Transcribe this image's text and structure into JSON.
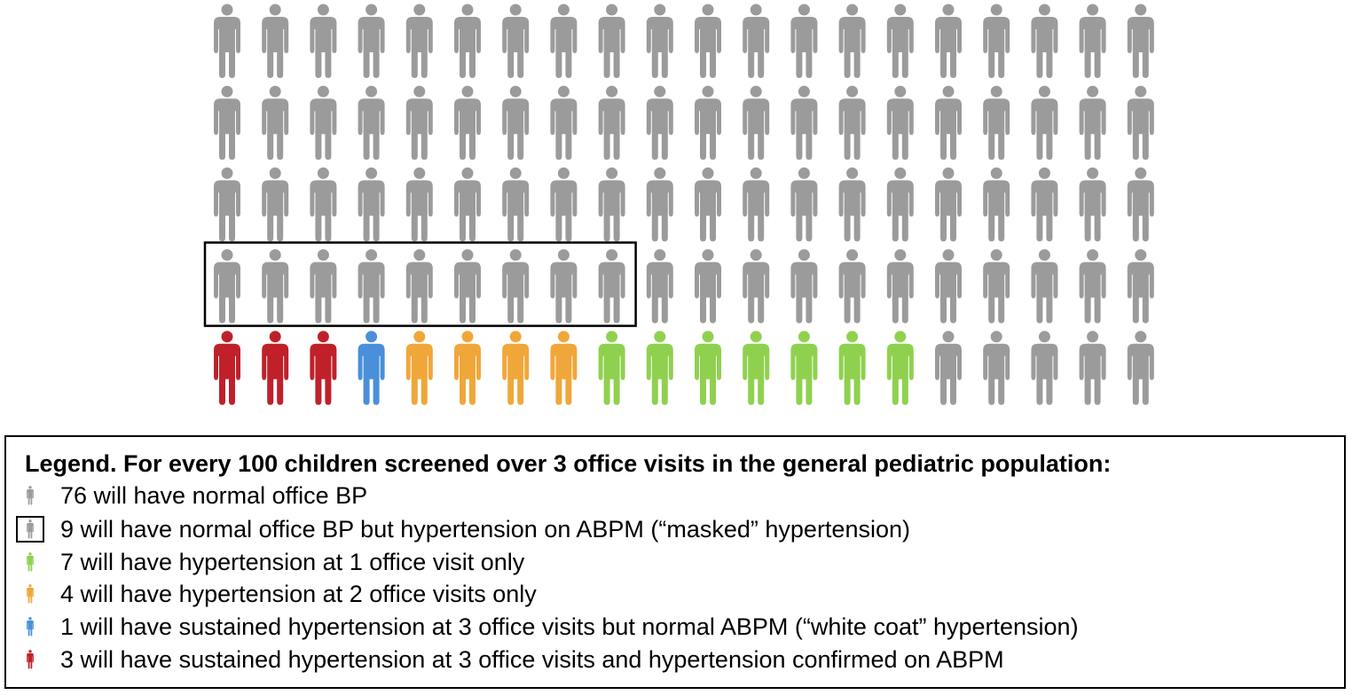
{
  "colors": {
    "normal": "#9b9b9b",
    "masked": "#9b9b9b",
    "one_visit": "#8fd14f",
    "two_visits": "#f0a73a",
    "white_coat": "#4a8fd9",
    "confirmed": "#c0202a"
  },
  "chart_data": {
    "type": "pictograph",
    "total": 100,
    "grid": {
      "rows": 5,
      "columns": 20
    },
    "categories": [
      {
        "key": "normal",
        "count": 76,
        "label": "76 will have normal office BP"
      },
      {
        "key": "masked",
        "count": 9,
        "label": "9 will have normal office BP but hypertension on ABPM (“masked” hypertension)",
        "boxed": true
      },
      {
        "key": "one_visit",
        "count": 7,
        "label": "7 will have hypertension at 1 office visit only"
      },
      {
        "key": "two_visits",
        "count": 4,
        "label": "4 will have hypertension at 2 office visits only"
      },
      {
        "key": "white_coat",
        "count": 1,
        "label": "1 will have sustained hypertension at 3 office visits but normal ABPM (“white coat” hypertension)"
      },
      {
        "key": "confirmed",
        "count": 3,
        "label": "3 will have sustained hypertension at 3 office visits and hypertension confirmed on ABPM"
      }
    ],
    "icon_rows": [
      [
        "normal",
        "normal",
        "normal",
        "normal",
        "normal",
        "normal",
        "normal",
        "normal",
        "normal",
        "normal",
        "normal",
        "normal",
        "normal",
        "normal",
        "normal",
        "normal",
        "normal",
        "normal",
        "normal",
        "normal"
      ],
      [
        "normal",
        "normal",
        "normal",
        "normal",
        "normal",
        "normal",
        "normal",
        "normal",
        "normal",
        "normal",
        "normal",
        "normal",
        "normal",
        "normal",
        "normal",
        "normal",
        "normal",
        "normal",
        "normal",
        "normal"
      ],
      [
        "normal",
        "normal",
        "normal",
        "normal",
        "normal",
        "normal",
        "normal",
        "normal",
        "normal",
        "normal",
        "normal",
        "normal",
        "normal",
        "normal",
        "normal",
        "normal",
        "normal",
        "normal",
        "normal",
        "normal"
      ],
      [
        "masked",
        "masked",
        "masked",
        "masked",
        "masked",
        "masked",
        "masked",
        "masked",
        "masked",
        "normal",
        "normal",
        "normal",
        "normal",
        "normal",
        "normal",
        "normal",
        "normal",
        "normal",
        "normal",
        "normal"
      ],
      [
        "confirmed",
        "confirmed",
        "confirmed",
        "white_coat",
        "two_visits",
        "two_visits",
        "two_visits",
        "two_visits",
        "one_visit",
        "one_visit",
        "one_visit",
        "one_visit",
        "one_visit",
        "one_visit",
        "one_visit",
        "normal",
        "normal",
        "normal",
        "normal",
        "normal"
      ]
    ]
  },
  "legend": {
    "title": "Legend. For every 100 children screened over 3 office visits in the general pediatric population:",
    "items": [
      {
        "icon": "person-icon",
        "color_key": "normal",
        "boxed": false,
        "text": "76 will have normal office BP"
      },
      {
        "icon": "person-icon",
        "color_key": "masked",
        "boxed": true,
        "text": "9 will have normal office BP but hypertension on ABPM (“masked” hypertension)"
      },
      {
        "icon": "person-icon",
        "color_key": "one_visit",
        "boxed": false,
        "text": "7 will have hypertension at 1 office visit only"
      },
      {
        "icon": "person-icon",
        "color_key": "two_visits",
        "boxed": false,
        "text": "4 will have hypertension at 2 office visits only"
      },
      {
        "icon": "person-icon",
        "color_key": "white_coat",
        "boxed": false,
        "text": "1 will have sustained hypertension at 3 office visits but normal ABPM (“white coat” hypertension)"
      },
      {
        "icon": "person-icon",
        "color_key": "confirmed",
        "boxed": false,
        "text": "3 will have sustained hypertension at 3 office visits and hypertension confirmed on ABPM"
      }
    ]
  }
}
